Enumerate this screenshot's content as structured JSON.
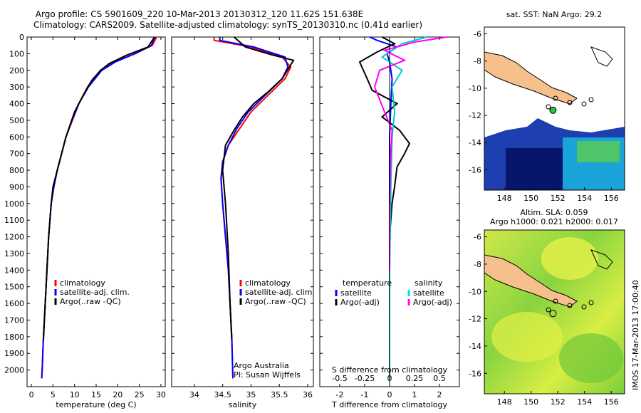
{
  "title_line1": "Argo profile: CS 5901609_220 10-Mar-2013 20130312_120 11.62S 151.638E",
  "title_line2": "Climatology: CARS2009. Satellite-adjusted climatology: synTS_20130310.nc (0.41d earlier)",
  "sst_title": "sat. SST: NaN Argo: 29.2",
  "sla_title1": "Altim. SLA: 0.059",
  "sla_title2": "Argo h1000: 0.021 h2000: 0.017",
  "imos_stamp": "IMOS 17-Mar-2013 17:00:40",
  "argo_note1": "Argo Australia",
  "argo_note2": "PI: Susan Wijffels",
  "colors": {
    "climatology": "#ff0000",
    "satellite": "#0000ff",
    "argo": "#000000",
    "sal_satellite": "#00dddd",
    "sal_argo": "#ff00ff",
    "land": "#f5c08c"
  },
  "chart_data": [
    {
      "type": "line",
      "xlabel": "temperature (deg C)",
      "ylabel": "",
      "xlim": [
        -1,
        31
      ],
      "ylim": [
        2100,
        0
      ],
      "xticks": [
        0,
        5,
        10,
        15,
        20,
        25,
        30
      ],
      "yticks": [
        0,
        100,
        200,
        300,
        400,
        500,
        600,
        700,
        800,
        900,
        1000,
        1100,
        1200,
        1300,
        1400,
        1500,
        1600,
        1700,
        1800,
        1900,
        2000
      ],
      "legend": [
        "climatology",
        "satellite-adj. clim.",
        "Argo(..raw -QC)"
      ],
      "series": [
        {
          "name": "climatology",
          "color": "#ff0000",
          "x": [
            29,
            28,
            24,
            19,
            16,
            13,
            11,
            9.5,
            8,
            7,
            6,
            5.2,
            4.6,
            4,
            3.6,
            3.2,
            2.8,
            2.5,
            2.4
          ],
          "y": [
            0,
            50,
            100,
            150,
            200,
            300,
            400,
            500,
            600,
            700,
            800,
            900,
            1000,
            1200,
            1400,
            1600,
            1800,
            2000,
            2050
          ]
        },
        {
          "name": "satellite-adj. clim.",
          "color": "#0000ff",
          "x": [
            28.6,
            27.8,
            24,
            19.4,
            16.3,
            13.2,
            11,
            9.4,
            8,
            7,
            6,
            5.2,
            4.6,
            4,
            3.6,
            3.2,
            2.8,
            2.5,
            2.4
          ],
          "y": [
            0,
            50,
            100,
            150,
            200,
            300,
            400,
            500,
            600,
            700,
            800,
            900,
            1000,
            1200,
            1400,
            1600,
            1800,
            2000,
            2050
          ]
        },
        {
          "name": "Argo(..raw -QC)",
          "color": "#000000",
          "x": [
            28.5,
            27,
            22,
            18,
            16,
            14,
            12,
            10,
            8,
            7,
            6,
            5,
            4.6,
            4,
            3.6,
            3.2,
            2.8
          ],
          "y": [
            0,
            60,
            110,
            160,
            200,
            260,
            350,
            450,
            600,
            700,
            800,
            900,
            1000,
            1200,
            1400,
            1600,
            1820
          ]
        }
      ]
    },
    {
      "type": "line",
      "xlabel": "salinity",
      "xlim": [
        33.6,
        36.1
      ],
      "ylim": [
        2100,
        0
      ],
      "xticks": [
        34,
        34.5,
        35,
        35.5,
        36
      ],
      "legend": [
        "climatology",
        "satellite-adj. clim.",
        "Argo(..raw -QC)"
      ],
      "series": [
        {
          "name": "climatology",
          "color": "#ff0000",
          "x": [
            34.35,
            34.35,
            35,
            35.55,
            35.7,
            35.6,
            35.3,
            35,
            34.8,
            34.6,
            34.5,
            34.47,
            34.5,
            34.55,
            34.6,
            34.63,
            34.66,
            34.68
          ],
          "y": [
            0,
            20,
            60,
            120,
            180,
            250,
            350,
            450,
            550,
            650,
            750,
            850,
            1000,
            1200,
            1400,
            1600,
            1800,
            2050
          ]
        },
        {
          "name": "satellite-adj. clim.",
          "color": "#0000ff",
          "x": [
            34.45,
            34.45,
            35.05,
            35.6,
            35.65,
            35.55,
            35.25,
            34.95,
            34.75,
            34.6,
            34.5,
            34.47,
            34.5,
            34.55,
            34.6,
            34.63,
            34.66,
            34.68
          ],
          "y": [
            0,
            20,
            60,
            120,
            180,
            250,
            350,
            450,
            550,
            650,
            750,
            850,
            1000,
            1200,
            1400,
            1600,
            1800,
            2050
          ]
        },
        {
          "name": "Argo(..raw -QC)",
          "color": "#000000",
          "x": [
            34.7,
            34.9,
            35.4,
            35.75,
            35.55,
            35.3,
            35.05,
            34.85,
            34.7,
            34.55,
            34.5,
            34.55,
            34.6,
            34.63,
            34.66
          ],
          "y": [
            0,
            60,
            110,
            140,
            250,
            330,
            400,
            480,
            560,
            650,
            800,
            1000,
            1300,
            1600,
            1820
          ]
        }
      ]
    },
    {
      "type": "line",
      "xlabel": "T difference from climatology",
      "xlabel_top": "S difference from climatology",
      "xlim": [
        -2.8,
        2.8
      ],
      "ylim": [
        2100,
        0
      ],
      "xticks": [
        -2,
        -1,
        0,
        1,
        2
      ],
      "xticks_top": [
        "-0.5",
        "-0.25",
        "0",
        "0.25",
        "0.5"
      ],
      "legend": [
        "temperature",
        "satellite",
        "Argo(-adj)",
        "salinity",
        "satellite",
        "Argo(-adj)"
      ],
      "series": [
        {
          "name": "satellite",
          "color": "#0000ff",
          "x": [
            -0.8,
            -0.5,
            0.3,
            -0.1,
            0,
            0.1,
            0.05,
            0,
            0,
            0,
            0
          ],
          "y": [
            0,
            20,
            60,
            100,
            150,
            250,
            400,
            600,
            900,
            1400,
            2050
          ]
        },
        {
          "name": "Argo(-adj)",
          "color": "#000000",
          "x": [
            -0.3,
            0.2,
            -0.5,
            -1.2,
            -0.9,
            -0.7,
            0.3,
            -0.3,
            0.4,
            0.8,
            0.6,
            0.3,
            0.2,
            0.1,
            0,
            0,
            0
          ],
          "y": [
            0,
            40,
            90,
            150,
            250,
            320,
            400,
            480,
            560,
            640,
            700,
            780,
            900,
            1000,
            1200,
            1600,
            1820
          ]
        },
        {
          "name": "satellite",
          "color": "#00cccc",
          "x": [
            1.5,
            0.5,
            -0.3,
            0.5,
            0.1,
            0.2,
            0.1,
            0.05,
            0,
            0
          ],
          "y": [
            0,
            40,
            120,
            200,
            300,
            450,
            600,
            900,
            1400,
            2050
          ]
        },
        {
          "name": "Argo(-adj)",
          "color": "#ff00ff",
          "x": [
            2.3,
            1,
            -0.2,
            0.6,
            -0.4,
            -0.6,
            -0.2,
            0.1,
            0.05,
            0,
            0
          ],
          "y": [
            0,
            30,
            80,
            140,
            200,
            300,
            450,
            560,
            700,
            1000,
            1400
          ]
        }
      ]
    }
  ],
  "maps": {
    "sst": {
      "xlim": [
        146.5,
        157
      ],
      "ylim": [
        -17.5,
        -5.5
      ],
      "xticks": [
        148,
        150,
        152,
        154,
        156
      ],
      "yticks": [
        -6,
        -8,
        -10,
        -12,
        -14,
        -16
      ]
    },
    "sla": {
      "xlim": [
        146.5,
        157
      ],
      "ylim": [
        -17.5,
        -5.5
      ],
      "xticks": [
        148,
        150,
        152,
        154,
        156
      ],
      "yticks": [
        -6,
        -8,
        -10,
        -12,
        -14,
        -16
      ]
    },
    "argo_point": {
      "lon": 151.638,
      "lat": -11.62
    }
  }
}
